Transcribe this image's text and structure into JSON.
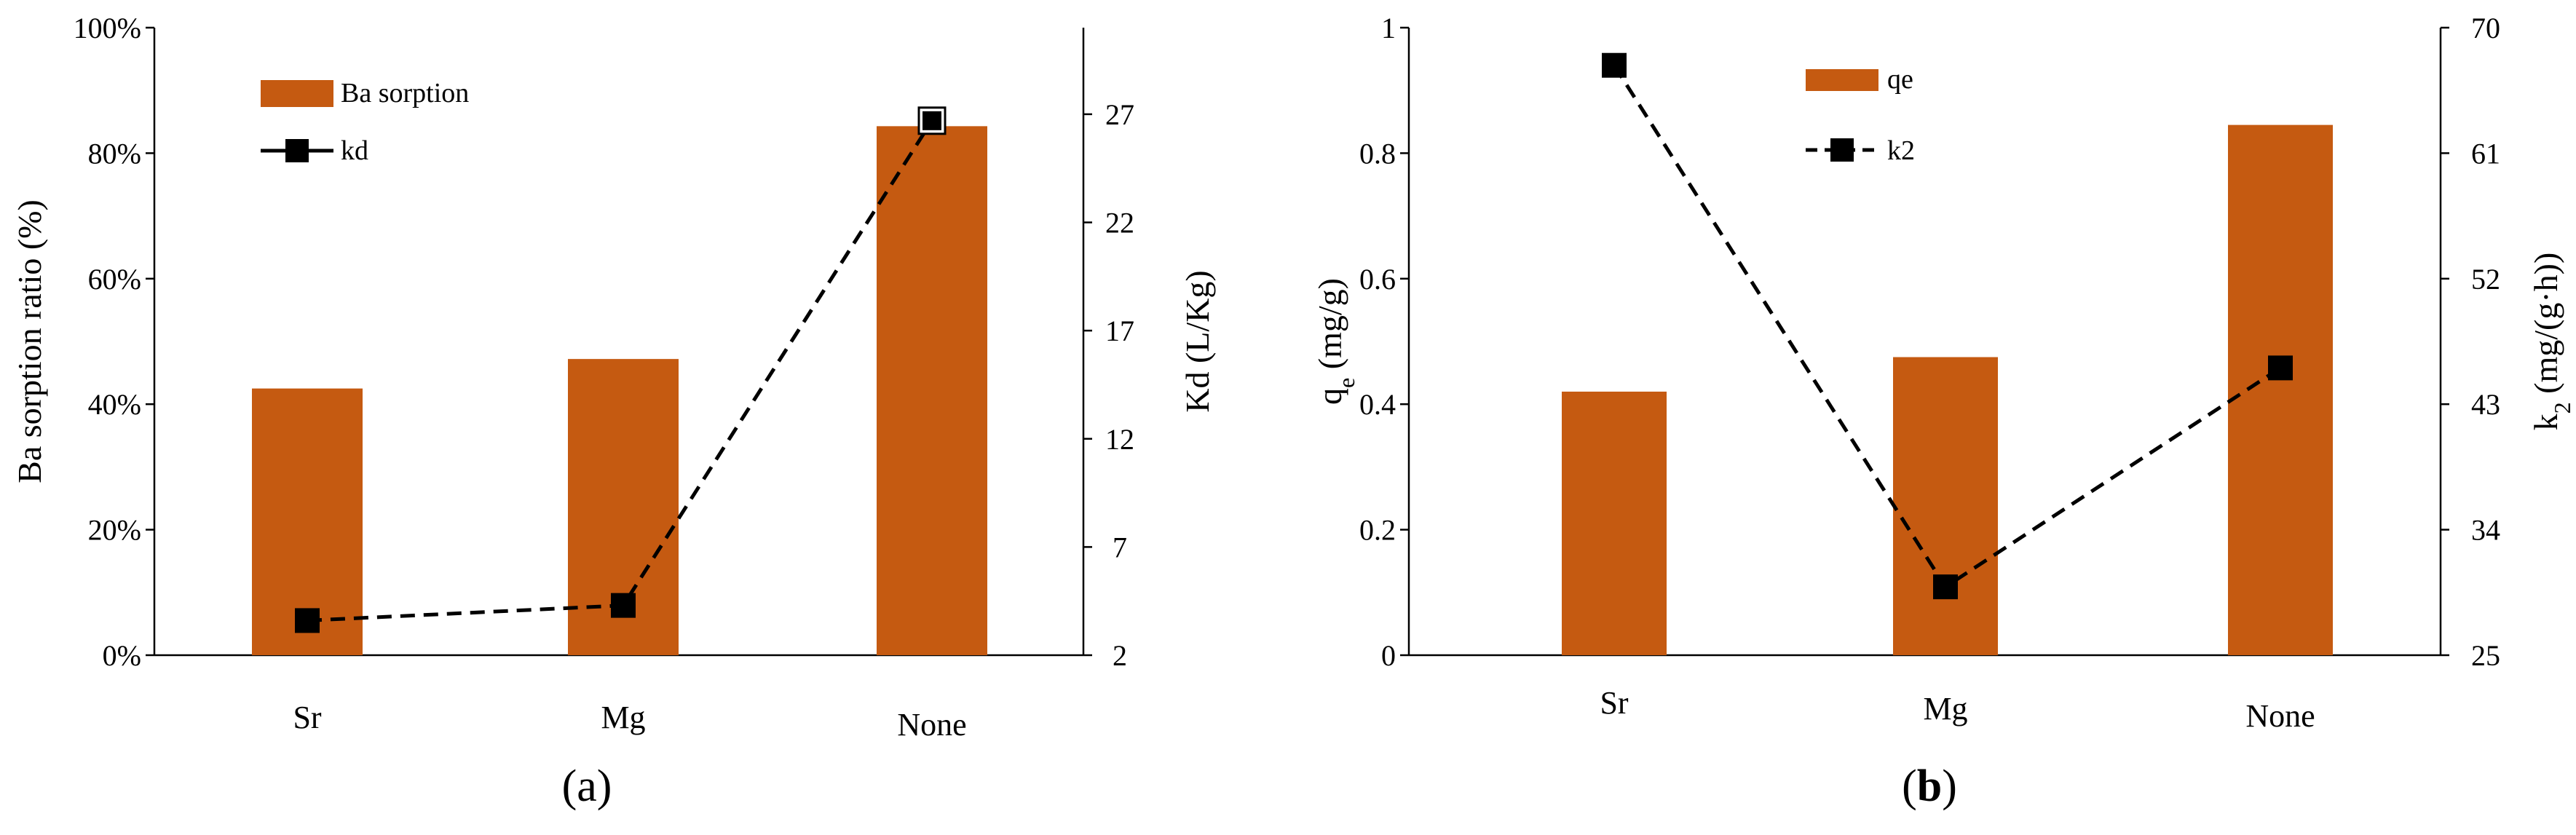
{
  "colors": {
    "bar": "#C55A11",
    "line": "#000000"
  },
  "chart_data": [
    {
      "type": "bar",
      "panel_label": "(a)",
      "categories": [
        "Sr",
        "Mg",
        "None"
      ],
      "series": [
        {
          "name": "Ba sorption",
          "kind": "bar",
          "axis": "left",
          "values": [
            0.425,
            0.472,
            0.843
          ]
        },
        {
          "name": "kd",
          "kind": "line",
          "axis": "right",
          "values": [
            3.6,
            4.3,
            26.7
          ]
        }
      ],
      "ylabel": "Ba sorption ratio (%)",
      "ylim": [
        0,
        1
      ],
      "yticks": [
        0,
        0.2,
        0.4,
        0.6,
        0.8,
        1.0
      ],
      "yticklabels": [
        "0%",
        "20%",
        "40%",
        "60%",
        "80%",
        "100%"
      ],
      "y2label": "Kd (L/Kg)",
      "y2lim": [
        2,
        31
      ],
      "y2ticks": [
        2,
        7,
        12,
        17,
        22,
        27
      ],
      "y2ticklabels": [
        "2",
        "7",
        "12",
        "17",
        "22",
        "27"
      ],
      "legend_labels": {
        "bar": "Ba sorption",
        "line": "kd"
      }
    },
    {
      "type": "bar",
      "panel_label": "(b)",
      "categories": [
        "Sr",
        "Mg",
        "None"
      ],
      "series": [
        {
          "name": "qe",
          "kind": "bar",
          "axis": "left",
          "values": [
            0.42,
            0.475,
            0.845
          ]
        },
        {
          "name": "k2",
          "kind": "line",
          "axis": "right",
          "values": [
            67.3,
            29.9,
            45.6
          ]
        }
      ],
      "ylim": [
        0,
        1
      ],
      "yticks": [
        0,
        0.2,
        0.4,
        0.6,
        0.8,
        1
      ],
      "yticklabels": [
        "0",
        "0.2",
        "0.4",
        "0.6",
        "0.8",
        "1"
      ],
      "y2lim": [
        25,
        70
      ],
      "y2ticks": [
        25,
        34,
        43,
        52,
        61,
        70
      ],
      "y2ticklabels": [
        "25",
        "34",
        "43",
        "52",
        "61",
        "70"
      ],
      "legend_labels": {
        "bar": "qe",
        "line": "k2"
      }
    }
  ]
}
